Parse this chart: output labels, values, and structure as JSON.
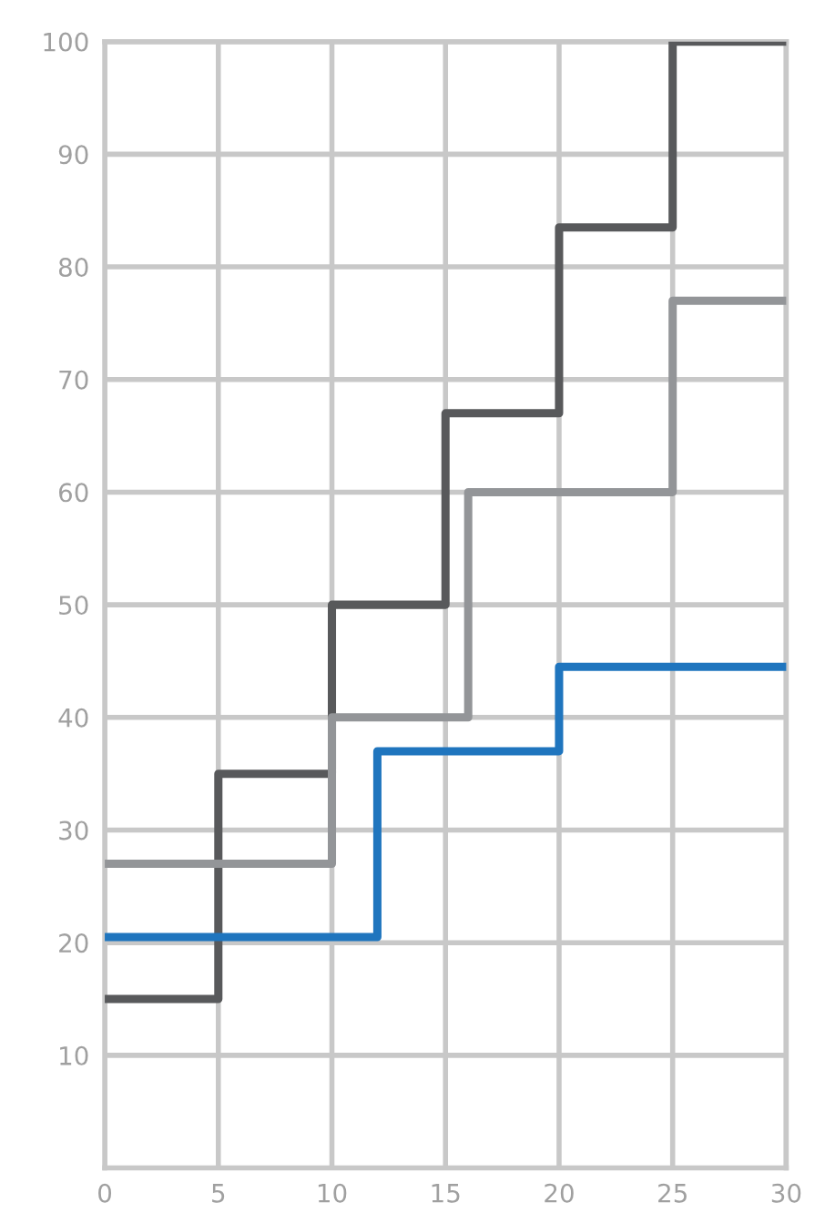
{
  "chart_data": {
    "type": "step",
    "xlim": [
      0,
      30
    ],
    "xticks": [
      0,
      5,
      10,
      15,
      20,
      25,
      30
    ],
    "ylim": [
      0,
      100
    ],
    "yticks": [
      10,
      20,
      30,
      40,
      50,
      60,
      70,
      80,
      90,
      100
    ],
    "grid": true,
    "legend": false,
    "marker": "none",
    "line_style": "solid",
    "series": [
      {
        "color": "#58595b",
        "x": [
          0,
          5,
          10,
          15,
          20,
          25,
          30
        ],
        "values": [
          15,
          35,
          50,
          67,
          83.5,
          100,
          100
        ]
      },
      {
        "color": "#939598",
        "x": [
          0,
          10,
          16,
          25,
          30
        ],
        "values": [
          27,
          40,
          60,
          77,
          77
        ]
      },
      {
        "color": "#1f75be",
        "x": [
          0,
          12,
          20,
          30
        ],
        "values": [
          20.5,
          37,
          44.5,
          44.5
        ]
      }
    ]
  }
}
